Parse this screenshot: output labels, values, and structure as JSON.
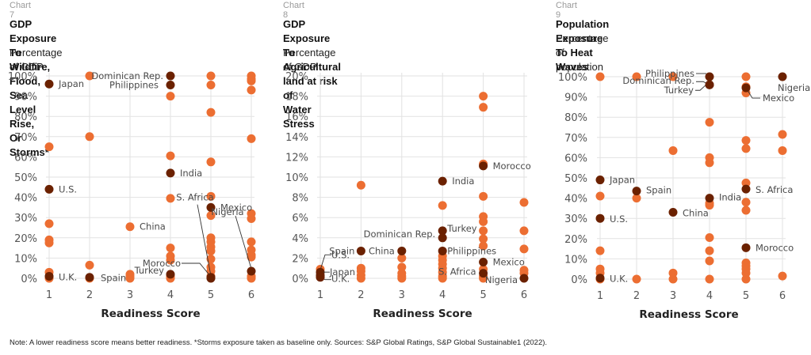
{
  "colors": {
    "regular_point": "#ec6e32",
    "highlight_point": "#6b2100",
    "grid": "#e2e2e2",
    "tick_text": "#555555",
    "label_text": "#4a4a4a"
  },
  "footnote": "Note: A lower readiness score means better readiness. *Storms exposure taken as baseline only. Sources: S&P Global Ratings, S&P Global Sustainable1 (2022).",
  "chart_data": [
    {
      "type": "scatter",
      "chart_number": "Chart 7",
      "title_lines": [
        "GDP Exposure To Wildfire, Flood, Sea Level Rise,",
        "Or Storms*"
      ],
      "subtitle": "Percentage of GDP",
      "xlabel": "Readiness Score",
      "ylabel": "",
      "xlim": [
        1,
        6
      ],
      "ylim": [
        0,
        100
      ],
      "x_ticks": [
        "1",
        "2",
        "3",
        "4",
        "5",
        "6"
      ],
      "y_ticks": [
        "0%",
        "10%",
        "20%",
        "30%",
        "40%",
        "50%",
        "60%",
        "70%",
        "80%",
        "90%",
        "100%"
      ],
      "grid": true,
      "points": [
        {
          "x": 1,
          "y": 65
        },
        {
          "x": 1,
          "y": 27
        },
        {
          "x": 1,
          "y": 19
        },
        {
          "x": 1,
          "y": 17.5
        },
        {
          "x": 1,
          "y": 3
        },
        {
          "x": 1,
          "y": 0
        },
        {
          "x": 2,
          "y": 100
        },
        {
          "x": 2,
          "y": 70
        },
        {
          "x": 2,
          "y": 6.5
        },
        {
          "x": 2,
          "y": 0
        },
        {
          "x": 3,
          "y": 2
        },
        {
          "x": 3,
          "y": 1
        },
        {
          "x": 3,
          "y": 0
        },
        {
          "x": 4,
          "y": 90
        },
        {
          "x": 4,
          "y": 60.5
        },
        {
          "x": 4,
          "y": 39.5
        },
        {
          "x": 4,
          "y": 15
        },
        {
          "x": 4,
          "y": 11
        },
        {
          "x": 4,
          "y": 9
        },
        {
          "x": 4,
          "y": 1
        },
        {
          "x": 4,
          "y": 0
        },
        {
          "x": 5,
          "y": 100
        },
        {
          "x": 5,
          "y": 95.5
        },
        {
          "x": 5,
          "y": 82
        },
        {
          "x": 5,
          "y": 57.5
        },
        {
          "x": 5,
          "y": 40.5
        },
        {
          "x": 5,
          "y": 31
        },
        {
          "x": 5,
          "y": 20
        },
        {
          "x": 5,
          "y": 18
        },
        {
          "x": 5,
          "y": 15.5
        },
        {
          "x": 5,
          "y": 13.5
        },
        {
          "x": 5,
          "y": 9.5
        },
        {
          "x": 5,
          "y": 5.5
        },
        {
          "x": 5,
          "y": 3.5
        },
        {
          "x": 5,
          "y": 1
        },
        {
          "x": 6,
          "y": 100
        },
        {
          "x": 6,
          "y": 98.5
        },
        {
          "x": 6,
          "y": 97.5
        },
        {
          "x": 6,
          "y": 93
        },
        {
          "x": 6,
          "y": 69
        },
        {
          "x": 6,
          "y": 32
        },
        {
          "x": 6,
          "y": 29.5
        },
        {
          "x": 6,
          "y": 18
        },
        {
          "x": 6,
          "y": 14
        },
        {
          "x": 6,
          "y": 11.5
        },
        {
          "x": 6,
          "y": 10.5
        },
        {
          "x": 6,
          "y": 1
        },
        {
          "x": 6,
          "y": 0
        }
      ],
      "highlighted": [
        {
          "name": "Japan",
          "x": 1,
          "y": 96,
          "label_side": "right"
        },
        {
          "name": "U.S.",
          "x": 1,
          "y": 44,
          "label_side": "right"
        },
        {
          "name": "U.K.",
          "x": 1,
          "y": 1,
          "label_side": "right"
        },
        {
          "name": "Spain",
          "x": 2,
          "y": 0.5,
          "label_side": "right"
        },
        {
          "name": "China",
          "x": 3,
          "y": 25.5,
          "label_side": "right",
          "regular": true
        },
        {
          "name": "Dominican Rep.",
          "x": 4,
          "y": 100,
          "label_side": "left"
        },
        {
          "name": "Philippines",
          "x": 4,
          "y": 95.5,
          "label_side": "left"
        },
        {
          "name": "India",
          "x": 4,
          "y": 52,
          "label_side": "right"
        },
        {
          "name": "Turkey",
          "x": 4,
          "y": 2,
          "label_side": "left"
        },
        {
          "name": "Mexico",
          "x": 5,
          "y": 35,
          "label_side": "right"
        },
        {
          "name": "S. Africa",
          "x": 5,
          "y": 0.5,
          "label_side": "callout"
        },
        {
          "name": "Morocco",
          "x": 5,
          "y": 0,
          "label_side": "callout"
        },
        {
          "name": "Nigeria",
          "x": 6,
          "y": 3.5,
          "label_side": "callout"
        }
      ]
    },
    {
      "type": "scatter",
      "chart_number": "Chart 8",
      "title_lines": [
        "GDP Exposure To Agricultural land at risk of",
        "Water Stress"
      ],
      "subtitle": "Percentage of GDP",
      "xlabel": "Readiness Score",
      "ylabel": "",
      "xlim": [
        1,
        6
      ],
      "ylim": [
        0,
        20
      ],
      "x_ticks": [
        "1",
        "2",
        "3",
        "4",
        "5",
        "6"
      ],
      "y_ticks": [
        "0%",
        "2%",
        "4%",
        "6%",
        "8%",
        "10%",
        "12%",
        "14%",
        "16%",
        "18%",
        "20%"
      ],
      "grid": true,
      "points": [
        {
          "x": 1,
          "y": 0.9
        },
        {
          "x": 1,
          "y": 0.2
        },
        {
          "x": 2,
          "y": 9.2
        },
        {
          "x": 2,
          "y": 1
        },
        {
          "x": 2,
          "y": 0.7
        },
        {
          "x": 2,
          "y": 0.3
        },
        {
          "x": 2,
          "y": 0
        },
        {
          "x": 3,
          "y": 2
        },
        {
          "x": 3,
          "y": 1.1
        },
        {
          "x": 3,
          "y": 0.5
        },
        {
          "x": 3,
          "y": 0.2
        },
        {
          "x": 3,
          "y": 0
        },
        {
          "x": 4,
          "y": 7.2
        },
        {
          "x": 4,
          "y": 2.2
        },
        {
          "x": 4,
          "y": 1.8
        },
        {
          "x": 4,
          "y": 1.4
        },
        {
          "x": 4,
          "y": 1
        },
        {
          "x": 4,
          "y": 0.6
        },
        {
          "x": 4,
          "y": 0.2
        },
        {
          "x": 4,
          "y": 0
        },
        {
          "x": 5,
          "y": 18
        },
        {
          "x": 5,
          "y": 16.9
        },
        {
          "x": 5,
          "y": 11.3
        },
        {
          "x": 5,
          "y": 8.1
        },
        {
          "x": 5,
          "y": 6.1
        },
        {
          "x": 5,
          "y": 5.6
        },
        {
          "x": 5,
          "y": 4.7
        },
        {
          "x": 5,
          "y": 3.9
        },
        {
          "x": 5,
          "y": 3.2
        },
        {
          "x": 5,
          "y": 0.9
        },
        {
          "x": 5,
          "y": 0.2
        },
        {
          "x": 5,
          "y": 0
        },
        {
          "x": 6,
          "y": 7.5
        },
        {
          "x": 6,
          "y": 4.7
        },
        {
          "x": 6,
          "y": 2.9
        },
        {
          "x": 6,
          "y": 0.8
        },
        {
          "x": 6,
          "y": 0.5
        }
      ],
      "highlighted": [
        {
          "name": "U.S.",
          "x": 1,
          "y": 0.6,
          "label_side": "callout"
        },
        {
          "name": "Japan",
          "x": 1,
          "y": 0.3,
          "label_side": "callout"
        },
        {
          "name": "U.K.",
          "x": 1,
          "y": 0.1,
          "label_side": "callout"
        },
        {
          "name": "Spain",
          "x": 2,
          "y": 2.7,
          "label_side": "left"
        },
        {
          "name": "China",
          "x": 3,
          "y": 2.7,
          "label_side": "left"
        },
        {
          "name": "India",
          "x": 4,
          "y": 9.6,
          "label_side": "right"
        },
        {
          "name": "Turkey",
          "x": 4,
          "y": 4.7,
          "label_side": "right"
        },
        {
          "name": "Dominican Rep.",
          "x": 4,
          "y": 4,
          "label_side": "left"
        },
        {
          "name": "Philippines",
          "x": 4,
          "y": 2.7,
          "label_side": "right"
        },
        {
          "name": "Morocco",
          "x": 5,
          "y": 11.1,
          "label_side": "right"
        },
        {
          "name": "Mexico",
          "x": 5,
          "y": 1.6,
          "label_side": "right"
        },
        {
          "name": "S. Africa",
          "x": 5,
          "y": 0.5,
          "label_side": "left"
        },
        {
          "name": "Nigeria",
          "x": 6,
          "y": 0,
          "label_side": "left"
        }
      ]
    },
    {
      "type": "scatter",
      "chart_number": "Chart 9",
      "title_lines": [
        "Population Exposure To Heat Waves"
      ],
      "subtitle": "Percentage of population",
      "xlabel": "Readiness Score",
      "ylabel": "",
      "xlim": [
        1,
        6
      ],
      "ylim": [
        0,
        100
      ],
      "x_ticks": [
        "1",
        "2",
        "3",
        "4",
        "5",
        "6"
      ],
      "y_ticks": [
        "0%",
        "10%",
        "20%",
        "30%",
        "40%",
        "50%",
        "60%",
        "70%",
        "80%",
        "90%",
        "100%"
      ],
      "grid": true,
      "points": [
        {
          "x": 1,
          "y": 100
        },
        {
          "x": 1,
          "y": 41
        },
        {
          "x": 1,
          "y": 14
        },
        {
          "x": 1,
          "y": 5
        },
        {
          "x": 1,
          "y": 3
        },
        {
          "x": 1,
          "y": 0
        },
        {
          "x": 2,
          "y": 100
        },
        {
          "x": 2,
          "y": 40
        },
        {
          "x": 2,
          "y": 0
        },
        {
          "x": 3,
          "y": 100
        },
        {
          "x": 3,
          "y": 63.5
        },
        {
          "x": 3,
          "y": 3
        },
        {
          "x": 3,
          "y": 0
        },
        {
          "x": 4,
          "y": 77.5
        },
        {
          "x": 4,
          "y": 60
        },
        {
          "x": 4,
          "y": 57.5
        },
        {
          "x": 4,
          "y": 37.5
        },
        {
          "x": 4,
          "y": 36.5
        },
        {
          "x": 4,
          "y": 20.5
        },
        {
          "x": 4,
          "y": 14
        },
        {
          "x": 4,
          "y": 9
        },
        {
          "x": 4,
          "y": 0
        },
        {
          "x": 5,
          "y": 100
        },
        {
          "x": 5,
          "y": 95
        },
        {
          "x": 5,
          "y": 92
        },
        {
          "x": 5,
          "y": 68.5
        },
        {
          "x": 5,
          "y": 64.5
        },
        {
          "x": 5,
          "y": 47.5
        },
        {
          "x": 5,
          "y": 38
        },
        {
          "x": 5,
          "y": 34
        },
        {
          "x": 5,
          "y": 8
        },
        {
          "x": 5,
          "y": 6.5
        },
        {
          "x": 5,
          "y": 5
        },
        {
          "x": 5,
          "y": 3
        },
        {
          "x": 5,
          "y": 0
        },
        {
          "x": 6,
          "y": 71.5
        },
        {
          "x": 6,
          "y": 63.5
        },
        {
          "x": 6,
          "y": 1.5
        }
      ],
      "highlighted": [
        {
          "name": "Japan",
          "x": 1,
          "y": 49,
          "label_side": "right"
        },
        {
          "name": "U.S.",
          "x": 1,
          "y": 30,
          "label_side": "right"
        },
        {
          "name": "U.K.",
          "x": 1,
          "y": 0.5,
          "label_side": "right"
        },
        {
          "name": "Spain",
          "x": 2,
          "y": 43.5,
          "label_side": "right"
        },
        {
          "name": "China",
          "x": 3,
          "y": 33,
          "label_side": "right"
        },
        {
          "name": "Philippines",
          "x": 4,
          "y": 100,
          "label_side": "callout"
        },
        {
          "name": "Dominican Rep.",
          "x": 4,
          "y": 96,
          "label_side": "callout"
        },
        {
          "name": "Turkey",
          "x": 4,
          "y": 96,
          "label_side": "callout"
        },
        {
          "name": "India",
          "x": 4,
          "y": 40,
          "label_side": "right"
        },
        {
          "name": "Mexico",
          "x": 5,
          "y": 94.5,
          "label_side": "callout"
        },
        {
          "name": "S. Africa",
          "x": 5,
          "y": 44.5,
          "label_side": "right"
        },
        {
          "name": "Morocco",
          "x": 5,
          "y": 15.5,
          "label_side": "right"
        },
        {
          "name": "Nigeria",
          "x": 6,
          "y": 100,
          "label_side": "below"
        }
      ]
    }
  ]
}
